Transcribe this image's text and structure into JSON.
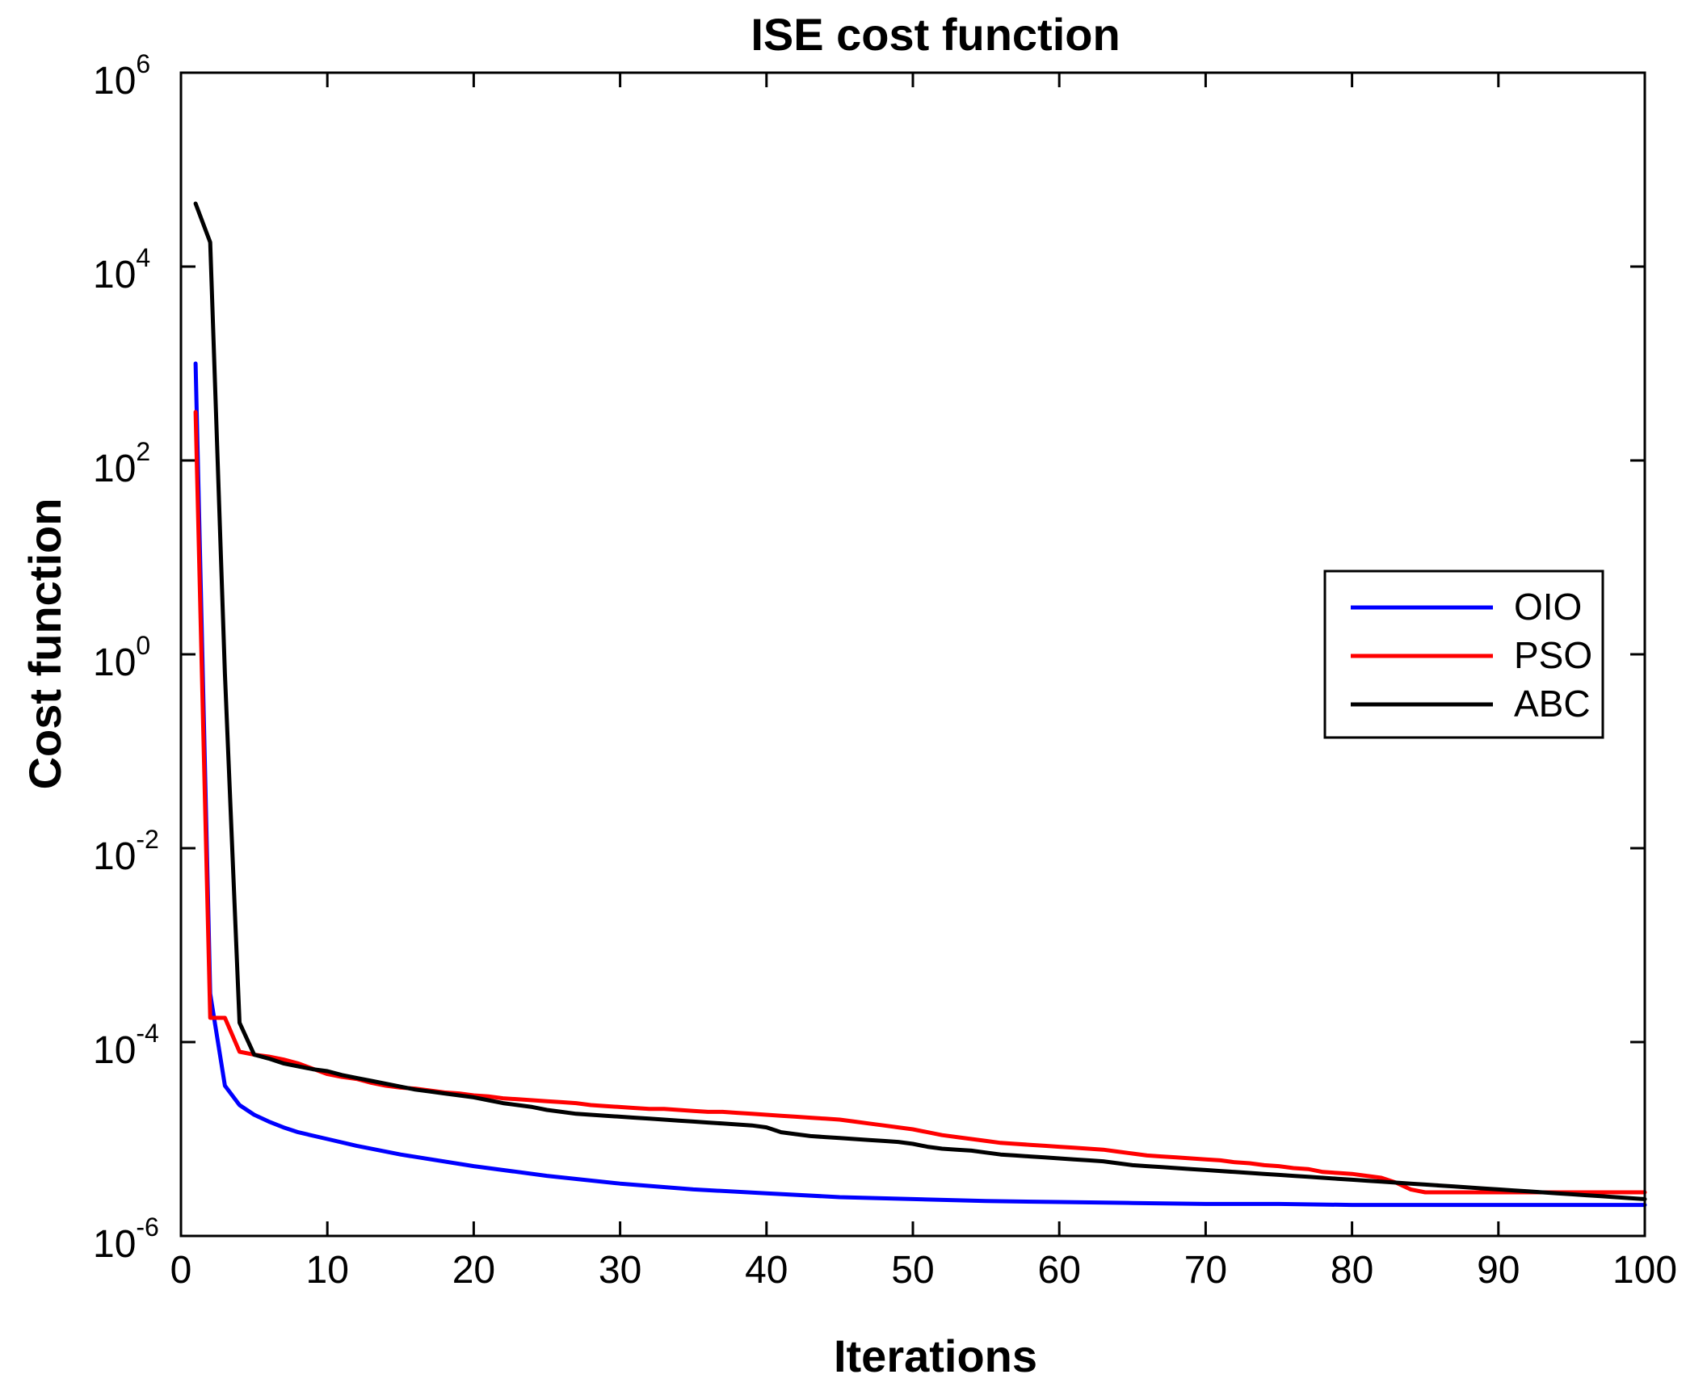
{
  "chart_data": {
    "type": "line",
    "title": "ISE cost function",
    "xlabel": "Iterations",
    "ylabel": "Cost function",
    "xlim": [
      0,
      100
    ],
    "ylim_log10": [
      -6,
      6
    ],
    "yscale": "log",
    "x_ticks": [
      0,
      10,
      20,
      30,
      40,
      50,
      60,
      70,
      80,
      90,
      100
    ],
    "x_tick_labels": [
      "0",
      "10",
      "20",
      "30",
      "40",
      "50",
      "60",
      "70",
      "80",
      "90",
      "100"
    ],
    "y_ticks_log10": [
      -6,
      -4,
      -2,
      0,
      2,
      4,
      6
    ],
    "y_tick_base": "10",
    "y_tick_exponents": [
      "-6",
      "-4",
      "-2",
      "0",
      "2",
      "4",
      "6"
    ],
    "legend_position": "right",
    "series": [
      {
        "name": "OIO",
        "color": "#0000ff",
        "x": [
          1,
          2,
          3,
          4,
          5,
          6,
          7,
          8,
          10,
          12,
          15,
          20,
          25,
          30,
          35,
          40,
          45,
          50,
          55,
          60,
          65,
          70,
          75,
          80,
          85,
          90,
          95,
          100
        ],
        "log10_y": [
          3.0,
          -3.5,
          -4.45,
          -4.65,
          -4.75,
          -4.82,
          -4.88,
          -4.93,
          -5.0,
          -5.07,
          -5.16,
          -5.28,
          -5.38,
          -5.46,
          -5.52,
          -5.56,
          -5.6,
          -5.62,
          -5.64,
          -5.65,
          -5.66,
          -5.67,
          -5.67,
          -5.68,
          -5.68,
          -5.68,
          -5.68,
          -5.68
        ]
      },
      {
        "name": "PSO",
        "color": "#ff0000",
        "x": [
          1,
          2,
          3,
          4,
          5,
          6,
          7,
          8,
          10,
          11,
          12,
          13,
          14,
          15,
          16,
          17,
          18,
          19,
          20,
          21,
          22,
          23,
          24,
          25,
          26,
          27,
          28,
          29,
          30,
          31,
          32,
          33,
          34,
          35,
          36,
          37,
          38,
          39,
          40,
          41,
          42,
          43,
          44,
          45,
          46,
          47,
          48,
          49,
          50,
          51,
          52,
          53,
          54,
          55,
          56,
          57,
          58,
          59,
          60,
          61,
          62,
          63,
          64,
          65,
          66,
          67,
          68,
          69,
          70,
          71,
          72,
          73,
          74,
          75,
          76,
          77,
          78,
          79,
          80,
          81,
          82,
          83,
          84,
          85,
          86,
          88,
          90,
          92,
          95,
          100
        ],
        "log10_y": [
          2.5,
          -3.75,
          -3.75,
          -4.1,
          -4.13,
          -4.15,
          -4.18,
          -4.22,
          -4.33,
          -4.36,
          -4.38,
          -4.42,
          -4.45,
          -4.47,
          -4.48,
          -4.5,
          -4.52,
          -4.53,
          -4.55,
          -4.56,
          -4.58,
          -4.59,
          -4.6,
          -4.61,
          -4.62,
          -4.63,
          -4.65,
          -4.66,
          -4.67,
          -4.68,
          -4.69,
          -4.69,
          -4.7,
          -4.71,
          -4.72,
          -4.72,
          -4.73,
          -4.74,
          -4.75,
          -4.76,
          -4.77,
          -4.78,
          -4.79,
          -4.8,
          -4.82,
          -4.84,
          -4.86,
          -4.88,
          -4.9,
          -4.93,
          -4.96,
          -4.98,
          -5.0,
          -5.02,
          -5.04,
          -5.05,
          -5.06,
          -5.07,
          -5.08,
          -5.09,
          -5.1,
          -5.11,
          -5.13,
          -5.15,
          -5.17,
          -5.18,
          -5.19,
          -5.2,
          -5.21,
          -5.22,
          -5.24,
          -5.25,
          -5.27,
          -5.28,
          -5.3,
          -5.31,
          -5.34,
          -5.35,
          -5.36,
          -5.38,
          -5.4,
          -5.45,
          -5.52,
          -5.55,
          -5.55,
          -5.55,
          -5.55,
          -5.55,
          -5.55,
          -5.55
        ]
      },
      {
        "name": "ABC",
        "color": "#000000",
        "x": [
          1,
          2,
          3,
          4,
          5,
          6,
          7,
          8,
          9,
          10,
          11,
          12,
          13,
          14,
          15,
          16,
          17,
          18,
          19,
          20,
          21,
          22,
          23,
          24,
          25,
          26,
          27,
          28,
          29,
          30,
          31,
          32,
          33,
          34,
          35,
          36,
          37,
          38,
          39,
          40,
          41,
          42,
          43,
          44,
          45,
          46,
          47,
          48,
          49,
          50,
          51,
          52,
          53,
          54,
          55,
          56,
          57,
          58,
          59,
          60,
          61,
          62,
          63,
          64,
          65,
          66,
          67,
          68,
          69,
          70,
          71,
          72,
          73,
          74,
          75,
          76,
          77,
          78,
          79,
          80,
          81,
          82,
          83,
          84,
          85,
          86,
          87,
          88,
          89,
          90,
          91,
          92,
          93,
          94,
          95,
          96,
          97,
          98,
          99,
          100
        ],
        "log10_y": [
          4.65,
          4.25,
          -0.2,
          -3.8,
          -4.13,
          -4.17,
          -4.22,
          -4.25,
          -4.28,
          -4.3,
          -4.34,
          -4.37,
          -4.4,
          -4.43,
          -4.46,
          -4.49,
          -4.51,
          -4.53,
          -4.55,
          -4.57,
          -4.6,
          -4.63,
          -4.65,
          -4.67,
          -4.7,
          -4.72,
          -4.74,
          -4.75,
          -4.76,
          -4.77,
          -4.78,
          -4.79,
          -4.8,
          -4.81,
          -4.82,
          -4.83,
          -4.84,
          -4.85,
          -4.86,
          -4.88,
          -4.93,
          -4.95,
          -4.97,
          -4.98,
          -4.99,
          -5.0,
          -5.01,
          -5.02,
          -5.03,
          -5.05,
          -5.08,
          -5.1,
          -5.11,
          -5.12,
          -5.14,
          -5.16,
          -5.17,
          -5.18,
          -5.19,
          -5.2,
          -5.21,
          -5.22,
          -5.23,
          -5.25,
          -5.27,
          -5.28,
          -5.29,
          -5.3,
          -5.31,
          -5.32,
          -5.33,
          -5.34,
          -5.35,
          -5.36,
          -5.37,
          -5.38,
          -5.39,
          -5.4,
          -5.41,
          -5.42,
          -5.43,
          -5.44,
          -5.45,
          -5.46,
          -5.47,
          -5.48,
          -5.49,
          -5.5,
          -5.51,
          -5.52,
          -5.53,
          -5.54,
          -5.55,
          -5.56,
          -5.57,
          -5.58,
          -5.59,
          -5.6,
          -5.61,
          -5.62
        ]
      }
    ]
  }
}
